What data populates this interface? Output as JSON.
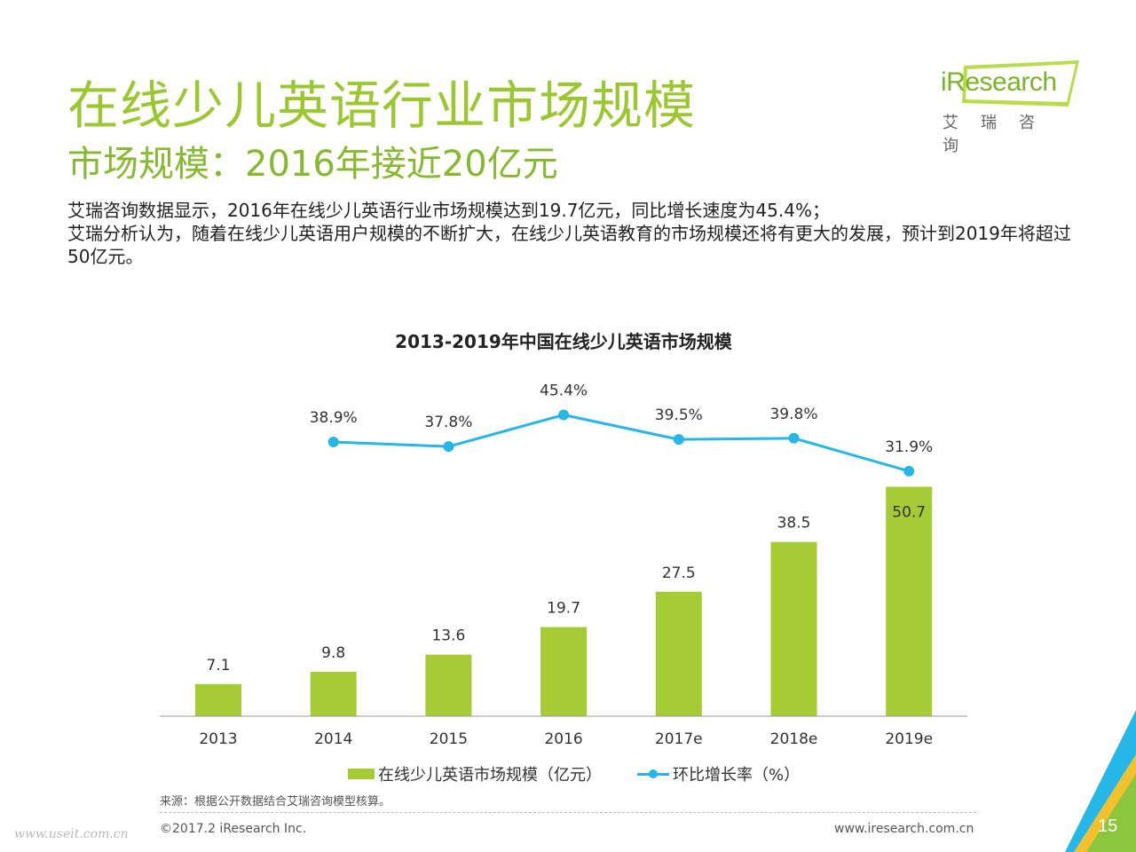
{
  "header": {
    "title": "在线少儿英语行业市场规模",
    "subtitle": "市场规模：2016年接近20亿元"
  },
  "logo": {
    "name_en": "iResearch",
    "name_cn": "艾瑞咨询"
  },
  "description": {
    "line1": "艾瑞咨询数据显示，2016年在线少儿英语行业市场规模达到19.7亿元，同比增长速度为45.4%；",
    "line2": "艾瑞分析认为，随着在线少儿英语用户规模的不断扩大，在线少儿英语教育的市场规模还将有更大的发展，预计到2019年将超过50亿元。"
  },
  "chart_data": {
    "type": "bar",
    "title": "2013-2019年中国在线少儿英语市场规模",
    "categories": [
      "2013",
      "2014",
      "2015",
      "2016",
      "2017e",
      "2018e",
      "2019e"
    ],
    "series": [
      {
        "name": "在线少儿英语市场规模（亿元）",
        "type": "bar",
        "values": [
          7.1,
          9.8,
          13.6,
          19.7,
          27.5,
          38.5,
          50.7
        ],
        "labels": [
          "7.1",
          "9.8",
          "13.6",
          "19.7",
          "27.5",
          "38.5",
          "50.7"
        ],
        "color": "#a6cc35"
      },
      {
        "name": "环比增长率（%）",
        "type": "line",
        "values": [
          null,
          38.9,
          37.8,
          45.4,
          39.5,
          39.8,
          31.9
        ],
        "labels": [
          "",
          "38.9%",
          "37.8%",
          "45.4%",
          "39.5%",
          "39.8%",
          "31.9%"
        ],
        "color": "#27b6e8"
      }
    ],
    "grid": false,
    "legend_position": "bottom"
  },
  "legend": {
    "bar_label": "在线少儿英语市场规模（亿元）",
    "line_label": "环比增长率（%）"
  },
  "footer": {
    "source": "来源：根据公开数据结合艾瑞咨询模型核算。",
    "copyright": "©2017.2 iResearch Inc.",
    "website": "www.iresearch.com.cn",
    "page_number": "15",
    "watermark": "www.useit.com.cn"
  },
  "colors": {
    "accent_green": "#9bc830",
    "bar_green": "#a6cc35",
    "line_blue": "#27b6e8"
  }
}
